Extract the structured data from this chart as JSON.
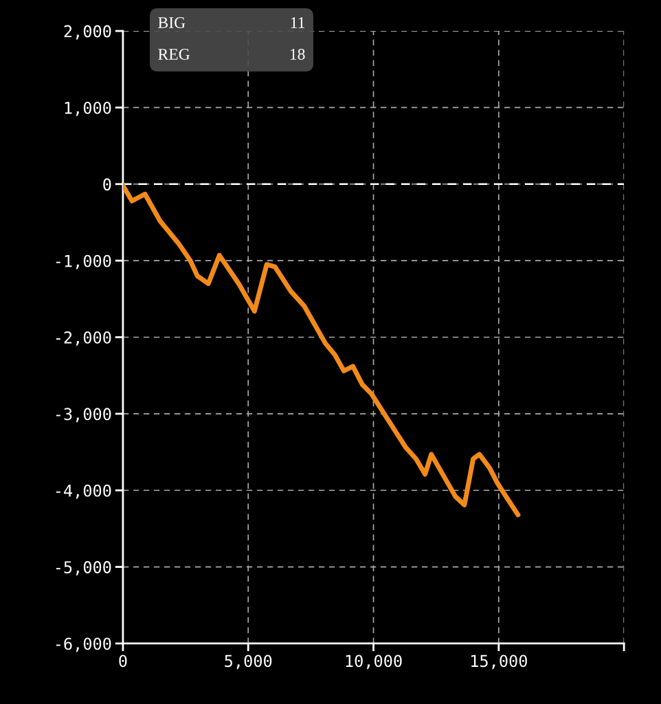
{
  "chart_data": {
    "type": "line",
    "x": [
      0,
      360,
      880,
      1480,
      2230,
      2690,
      2970,
      3410,
      3850,
      4620,
      5250,
      5740,
      6070,
      6700,
      7230,
      8080,
      8460,
      8820,
      9180,
      9560,
      9920,
      10740,
      11290,
      11700,
      12060,
      12310,
      13270,
      13630,
      13980,
      14230,
      14640,
      14940,
      15190,
      15770
    ],
    "series": [
      {
        "color": "#f28a1a",
        "values": [
          -20,
          -220,
          -130,
          -480,
          -780,
          -1000,
          -1200,
          -1300,
          -930,
          -1300,
          -1660,
          -1050,
          -1080,
          -1400,
          -1590,
          -2080,
          -2230,
          -2440,
          -2380,
          -2620,
          -2740,
          -3160,
          -3440,
          -3590,
          -3790,
          -3530,
          -4080,
          -4190,
          -3590,
          -3530,
          -3710,
          -3900,
          -4030,
          -4320
        ]
      }
    ],
    "xlim": [
      0,
      20000
    ],
    "ylim": [
      -6000,
      2000
    ],
    "xticks": [
      {
        "value": 0,
        "label": "0"
      },
      {
        "value": 5000,
        "label": "5,000"
      },
      {
        "value": 10000,
        "label": "10,000"
      },
      {
        "value": 15000,
        "label": "15,000"
      },
      {
        "value": 20000,
        "label": null
      }
    ],
    "yticks": [
      {
        "value": -6000,
        "label": "-6,000"
      },
      {
        "value": -5000,
        "label": "-5,000"
      },
      {
        "value": -4000,
        "label": "-4,000"
      },
      {
        "value": -3000,
        "label": "-3,000"
      },
      {
        "value": -2000,
        "label": "-2,000"
      },
      {
        "value": -1000,
        "label": "-1,000"
      },
      {
        "value": 0,
        "label": "0"
      },
      {
        "value": 1000,
        "label": "1,000"
      },
      {
        "value": 2000,
        "label": "2,000"
      }
    ],
    "grid": true,
    "marker": "none",
    "line_style": "solid",
    "ref_lines": [
      {
        "axis": "y",
        "value": 0,
        "color": "#ffffff",
        "line_style": "dashed"
      }
    ],
    "annotations": [
      "BIG",
      "11",
      "REG",
      "18"
    ]
  }
}
